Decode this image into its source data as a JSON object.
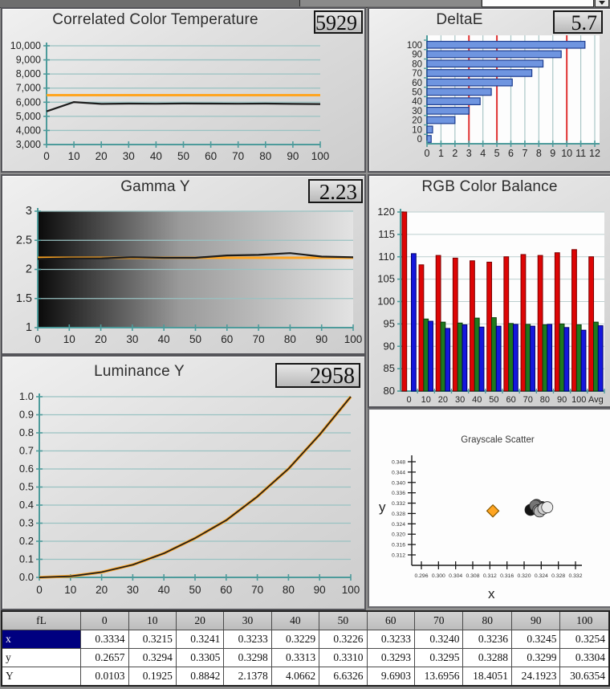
{
  "colors": {
    "reference_orange": "#ffa521",
    "series_black": "#1c1c1c",
    "grid_teal": "#99c2c2",
    "axis_teal": "#4d9b9b",
    "bar_blue": "#6f95e0",
    "bar_blue_border": "#1d3d8f",
    "target_red": "#e03333",
    "rgb_red": "#dd0505",
    "rgb_red_border": "#7a0000",
    "rgb_green": "#1e7a1e",
    "rgb_green_border": "#0c3d0c",
    "rgb_blue": "#1517dd",
    "rgb_blue_border": "#00006a",
    "selection_navy": "#000080"
  },
  "chart_data": [
    {
      "key": "cct",
      "type": "line",
      "title": "Correlated Color Temperature",
      "value": "5929",
      "xlabel": "",
      "ylabel": "",
      "ylim": [
        3000,
        10000
      ],
      "ytick_labels": [
        "3,000",
        "4,000",
        "5,000",
        "6,000",
        "7,000",
        "8,000",
        "9,000",
        "10,000"
      ],
      "yticks": [
        3000,
        4000,
        5000,
        6000,
        7000,
        8000,
        9000,
        10000
      ],
      "xticks": [
        0,
        10,
        20,
        30,
        40,
        50,
        60,
        70,
        80,
        90,
        100
      ],
      "xtick_labels": [
        "0",
        "10",
        "20",
        "30",
        "40",
        "50",
        "60",
        "70",
        "80",
        "90",
        "100"
      ],
      "reference": 6500,
      "x": [
        0,
        10,
        20,
        30,
        40,
        50,
        60,
        70,
        80,
        90,
        100
      ],
      "y": [
        5350,
        6010,
        5880,
        5900,
        5890,
        5910,
        5900,
        5890,
        5900,
        5880,
        5870
      ],
      "grid": true,
      "legend_position": "none"
    },
    {
      "key": "deltae",
      "type": "hbar",
      "title": "DeltaE",
      "value": "5.7",
      "categories": [
        "100",
        "90",
        "80",
        "70",
        "60",
        "50",
        "40",
        "30",
        "20",
        "10",
        "0"
      ],
      "values": [
        11.3,
        9.6,
        8.3,
        7.5,
        6.1,
        4.6,
        3.8,
        3.0,
        2.0,
        0.4,
        0.3
      ],
      "xlim": [
        0,
        12
      ],
      "xticks": [
        0,
        1,
        2,
        3,
        4,
        5,
        6,
        7,
        8,
        9,
        10,
        11,
        12
      ],
      "xtick_labels": [
        "0",
        "1",
        "2",
        "3",
        "4",
        "5",
        "6",
        "7",
        "8",
        "9",
        "10",
        "11",
        "12"
      ],
      "target_lines": [
        3,
        5,
        10
      ],
      "grid": true
    },
    {
      "key": "gamma",
      "type": "line",
      "title": "Gamma Y",
      "value": "2.23",
      "ylim": [
        1,
        3
      ],
      "yticks": [
        1,
        1.5,
        2,
        2.5,
        3
      ],
      "ytick_labels": [
        "1",
        "1.5",
        "2",
        "2.5",
        "3"
      ],
      "xticks": [
        0,
        10,
        20,
        30,
        40,
        50,
        60,
        70,
        80,
        90,
        100
      ],
      "xtick_labels": [
        "0",
        "10",
        "20",
        "30",
        "40",
        "50",
        "60",
        "70",
        "80",
        "90",
        "100"
      ],
      "reference": 2.2,
      "x": [
        0,
        10,
        20,
        30,
        40,
        50,
        60,
        70,
        80,
        90,
        100
      ],
      "y": [
        2.18,
        2.19,
        2.19,
        2.21,
        2.2,
        2.2,
        2.24,
        2.25,
        2.28,
        2.22,
        2.21
      ],
      "gradient_bg": true,
      "grid": true
    },
    {
      "key": "rgb",
      "type": "grouped_bar",
      "title": "RGB Color Balance",
      "ylim": [
        80,
        120
      ],
      "yticks": [
        80,
        85,
        90,
        95,
        100,
        105,
        110,
        115,
        120
      ],
      "ytick_labels": [
        "80",
        "85",
        "90",
        "95",
        "100",
        "105",
        "110",
        "115",
        "120"
      ],
      "categories": [
        "0",
        "10",
        "20",
        "30",
        "40",
        "50",
        "60",
        "70",
        "80",
        "90",
        "100",
        "Avg"
      ],
      "series": [
        {
          "name": "Red",
          "values": [
            120,
            108.2,
            110.3,
            109.7,
            109.1,
            108.8,
            110.0,
            110.5,
            110.3,
            110.9,
            111.6,
            110.0
          ]
        },
        {
          "name": "Green",
          "values": [
            null,
            96.1,
            95.4,
            95.2,
            96.3,
            96.4,
            95.1,
            94.9,
            94.8,
            95.0,
            94.8,
            95.4
          ]
        },
        {
          "name": "Blue",
          "values": [
            110.7,
            95.6,
            94.0,
            94.8,
            94.3,
            94.5,
            94.9,
            94.5,
            94.9,
            94.2,
            93.6,
            94.6
          ]
        }
      ],
      "grid": true
    },
    {
      "key": "lum",
      "type": "line",
      "title": "Luminance Y",
      "value": "2958",
      "ylim": [
        0,
        1
      ],
      "yticks": [
        0,
        0.1,
        0.2,
        0.3,
        0.4,
        0.5,
        0.6,
        0.7,
        0.8,
        0.9,
        1.0
      ],
      "ytick_labels": [
        "0.0",
        "0.1",
        "0.2",
        "0.3",
        "0.4",
        "0.5",
        "0.6",
        "0.7",
        "0.8",
        "0.9",
        "1.0"
      ],
      "xticks": [
        0,
        10,
        20,
        30,
        40,
        50,
        60,
        70,
        80,
        90,
        100
      ],
      "xtick_labels": [
        "0",
        "10",
        "20",
        "30",
        "40",
        "50",
        "60",
        "70",
        "80",
        "90",
        "100"
      ],
      "x": [
        0,
        10,
        20,
        30,
        40,
        50,
        60,
        70,
        80,
        90,
        100
      ],
      "y": [
        0.0,
        0.006,
        0.029,
        0.07,
        0.133,
        0.217,
        0.316,
        0.447,
        0.601,
        0.79,
        1.0
      ],
      "reference_curve": true,
      "grid": true
    },
    {
      "key": "scatter",
      "type": "scatter",
      "title": "Grayscale Scatter",
      "xlabel": "x",
      "ylabel": "y",
      "xticks": [
        0.296,
        0.3,
        0.304,
        0.308,
        0.312,
        0.316,
        0.32,
        0.324,
        0.328,
        0.332
      ],
      "xtick_labels": [
        "0.296",
        "0.300",
        "0.304",
        "0.308",
        "0.312",
        "0.316",
        "0.320",
        "0.324",
        "0.328",
        "0.332"
      ],
      "yticks": [
        0.312,
        0.316,
        0.32,
        0.324,
        0.328,
        0.332,
        0.336,
        0.34,
        0.344,
        0.348
      ],
      "ytick_labels": [
        "0.312",
        "0.316",
        "0.320",
        "0.324",
        "0.328",
        "0.332",
        "0.336",
        "0.340",
        "0.344",
        "0.348"
      ],
      "reference_point": {
        "x": 0.3127,
        "y": 0.329
      },
      "points": [
        {
          "x": 0.3215,
          "y": 0.3294,
          "shade": "#141414"
        },
        {
          "x": 0.3241,
          "y": 0.3305,
          "shade": "#333333"
        },
        {
          "x": 0.3233,
          "y": 0.3298,
          "shade": "#4a4a4a"
        },
        {
          "x": 0.3229,
          "y": 0.3313,
          "shade": "#606060"
        },
        {
          "x": 0.3226,
          "y": 0.331,
          "shade": "#757575"
        },
        {
          "x": 0.3233,
          "y": 0.3293,
          "shade": "#8a8a8a"
        },
        {
          "x": 0.324,
          "y": 0.3295,
          "shade": "#9f9f9f"
        },
        {
          "x": 0.3236,
          "y": 0.3288,
          "shade": "#b5b5b5"
        },
        {
          "x": 0.3245,
          "y": 0.3299,
          "shade": "#d0d0d0"
        },
        {
          "x": 0.3254,
          "y": 0.3304,
          "shade": "#ebebeb"
        }
      ]
    }
  ],
  "table": {
    "corner": "fL",
    "columns": [
      "0",
      "10",
      "20",
      "30",
      "40",
      "50",
      "60",
      "70",
      "80",
      "90",
      "100"
    ],
    "rows": [
      {
        "label": "x",
        "selected": true,
        "values": [
          "0.3334",
          "0.3215",
          "0.3241",
          "0.3233",
          "0.3229",
          "0.3226",
          "0.3233",
          "0.3240",
          "0.3236",
          "0.3245",
          "0.3254"
        ]
      },
      {
        "label": "y",
        "selected": false,
        "values": [
          "0.2657",
          "0.3294",
          "0.3305",
          "0.3298",
          "0.3313",
          "0.3310",
          "0.3293",
          "0.3295",
          "0.3288",
          "0.3299",
          "0.3304"
        ]
      },
      {
        "label": "Y",
        "selected": false,
        "values": [
          "0.0103",
          "0.1925",
          "0.8842",
          "2.1378",
          "4.0662",
          "6.6326",
          "9.6903",
          "13.6956",
          "18.4051",
          "24.1923",
          "30.6354"
        ]
      }
    ]
  }
}
